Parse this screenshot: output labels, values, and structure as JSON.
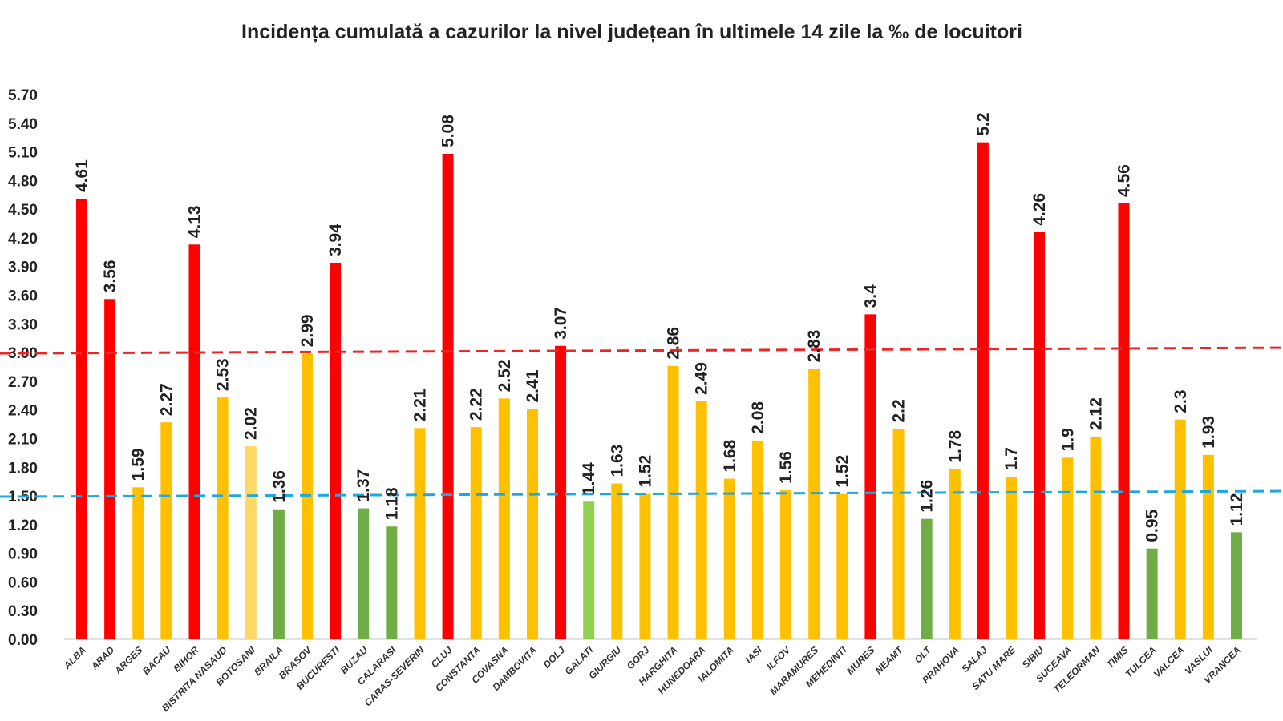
{
  "chart_data": {
    "type": "bar",
    "title": "Incidența cumulată a cazurilor la nivel județean în ultimele 14 zile la ‰ de locuitori",
    "xlabel": "",
    "ylabel": "",
    "ylim": [
      0,
      5.7
    ],
    "yticks": [
      "0.00",
      "0.30",
      "0.60",
      "0.90",
      "1.20",
      "1.50",
      "1.80",
      "2.10",
      "2.40",
      "2.70",
      "3.00",
      "3.30",
      "3.60",
      "3.90",
      "4.20",
      "4.50",
      "4.80",
      "5.10",
      "5.40",
      "5.70"
    ],
    "grid": false,
    "categories": [
      "ALBA",
      "ARAD",
      "ARGES",
      "BACAU",
      "BIHOR",
      "BISTRITA NASAUD",
      "BOTOSANI",
      "BRAILA",
      "BRASOV",
      "BUCURESTI",
      "BUZAU",
      "CALARASI",
      "CARAS-SEVERIN",
      "CLUJ",
      "CONSTANTA",
      "COVASNA",
      "DAMBOVITA",
      "DOLJ",
      "GALATI",
      "GIURGIU",
      "GORJ",
      "HARGHITA",
      "HUNEDOARA",
      "IALOMITA",
      "IASI",
      "ILFOV",
      "MARAMURES",
      "MEHEDINTI",
      "MURES",
      "NEAMT",
      "OLT",
      "PRAHOVA",
      "SALAJ",
      "SATU MARE",
      "SIBIU",
      "SUCEAVA",
      "TELEORMAN",
      "TIMIS",
      "TULCEA",
      "VALCEA",
      "VASLUI",
      "VRANCEA"
    ],
    "values": [
      4.61,
      3.56,
      1.59,
      2.27,
      4.13,
      2.53,
      2.02,
      1.36,
      2.99,
      3.94,
      1.37,
      1.18,
      2.21,
      5.08,
      2.22,
      2.52,
      2.41,
      3.07,
      1.44,
      1.63,
      1.52,
      2.86,
      2.49,
      1.68,
      2.08,
      1.56,
      2.83,
      1.52,
      3.4,
      2.2,
      1.26,
      1.78,
      5.2,
      1.7,
      4.26,
      1.9,
      2.12,
      4.56,
      0.95,
      2.3,
      1.93,
      1.12
    ],
    "value_labels": [
      "4.61",
      "3.56",
      "1.59",
      "2.27",
      "4.13",
      "2.53",
      "2.02",
      "1.36",
      "2.99",
      "3.94",
      "1.37",
      "1.18",
      "2.21",
      "5.08",
      "2.22",
      "2.52",
      "2.41",
      "3.07",
      "1.44",
      "1.63",
      "1.52",
      "2.86",
      "2.49",
      "1.68",
      "2.08",
      "1.56",
      "2.83",
      "1.52",
      "3.4",
      "2.2",
      "1.26",
      "1.78",
      "5.2",
      "1.7",
      "4.26",
      "1.9",
      "2.12",
      "4.56",
      "0.95",
      "2.3",
      "1.93",
      "1.12"
    ],
    "bar_color_keys": [
      "r",
      "r",
      "o",
      "o",
      "r",
      "o",
      "y",
      "g",
      "o",
      "r",
      "g",
      "g",
      "o",
      "r",
      "o",
      "o",
      "o",
      "r",
      "lg",
      "o",
      "o",
      "o",
      "o",
      "o",
      "o",
      "o",
      "o",
      "o",
      "r",
      "o",
      "g",
      "o",
      "r",
      "o",
      "r",
      "o",
      "o",
      "r",
      "g",
      "o",
      "o",
      "g"
    ],
    "palette": {
      "r": "#FF0000",
      "o": "#FFC000",
      "y": "#FFD966",
      "g": "#70AD47",
      "lg": "#92D050"
    },
    "reference_lines": [
      {
        "value": 3.0,
        "color": "#E82828",
        "style": "dashed"
      },
      {
        "value": 1.5,
        "color": "#1FA8E0",
        "style": "dashed"
      }
    ]
  }
}
